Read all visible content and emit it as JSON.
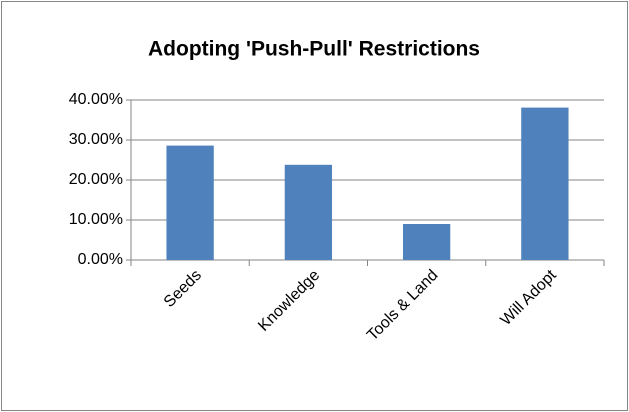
{
  "chart_data": {
    "type": "bar",
    "title": "Adopting 'Push-Pull' Restrictions",
    "categories": [
      "Seeds",
      "Knowledge",
      "Tools & Land",
      "Will Adopt"
    ],
    "values": [
      28.6,
      23.8,
      9.0,
      38.1
    ],
    "color": "#4f81bd",
    "ylim": [
      0,
      40
    ],
    "yticks": [
      {
        "value": 0,
        "label": "0.00%"
      },
      {
        "value": 10,
        "label": "10.00%"
      },
      {
        "value": 20,
        "label": "20.00%"
      },
      {
        "value": 30,
        "label": "30.00%"
      },
      {
        "value": 40,
        "label": "40.00%"
      }
    ],
    "grid": true
  }
}
